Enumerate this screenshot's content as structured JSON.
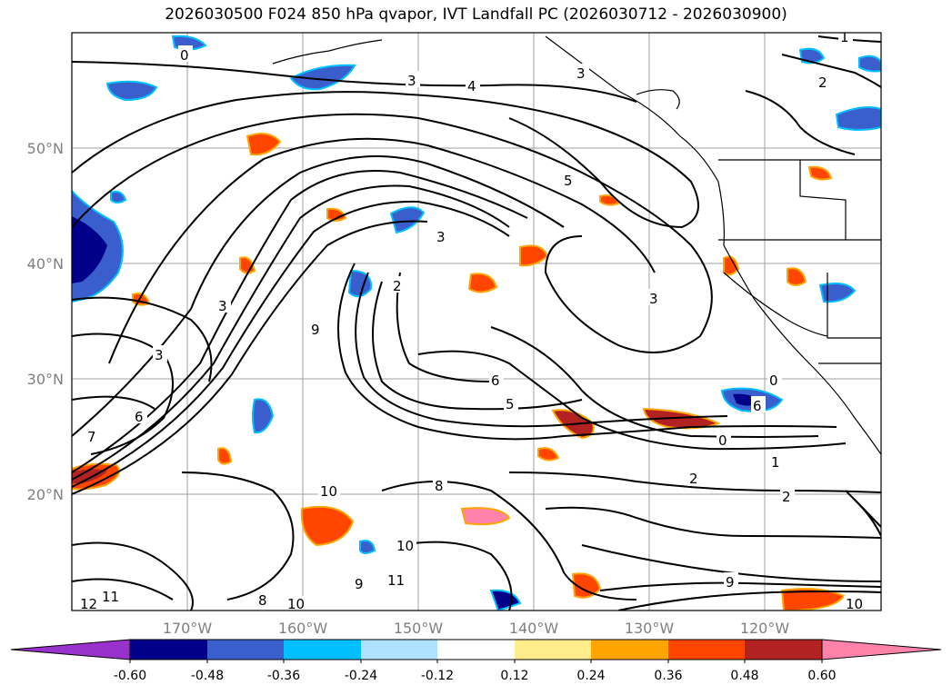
{
  "title": "2026030500 F024 850 hPa qvapor, IVT Landfall PC (2026030712 - 2026030900)",
  "map": {
    "lon_ticks": [
      "170°W",
      "160°W",
      "150°W",
      "140°W",
      "130°W",
      "120°W"
    ],
    "lat_ticks": [
      "50°N",
      "40°N",
      "30°N",
      "20°N"
    ],
    "contour_labels": [
      "0",
      "3",
      "4",
      "3",
      "1",
      "2",
      "5",
      "3",
      "2",
      "3",
      "3",
      "6",
      "5",
      "0",
      "1",
      "2",
      "2",
      "7",
      "6",
      "9",
      "8",
      "10",
      "10",
      "11",
      "12",
      "11",
      "10",
      "9",
      "8",
      "9",
      "10",
      "0",
      "6",
      "3"
    ],
    "colors": {
      "land_border": "#000000",
      "grid": "#a0a0a0",
      "tick_label": "#808080"
    }
  },
  "colorbar": {
    "levels": [
      "-0.60",
      "-0.48",
      "-0.36",
      "-0.24",
      "-0.12",
      "0.12",
      "0.24",
      "0.36",
      "0.48",
      "0.60"
    ],
    "colors": [
      "#9932cc",
      "#00008b",
      "#3a5fcd",
      "#00bfff",
      "#b0e2ff",
      "#ffffff",
      "#ffec8b",
      "#ffa500",
      "#ff4500",
      "#b22222",
      "#ff82ab"
    ]
  }
}
